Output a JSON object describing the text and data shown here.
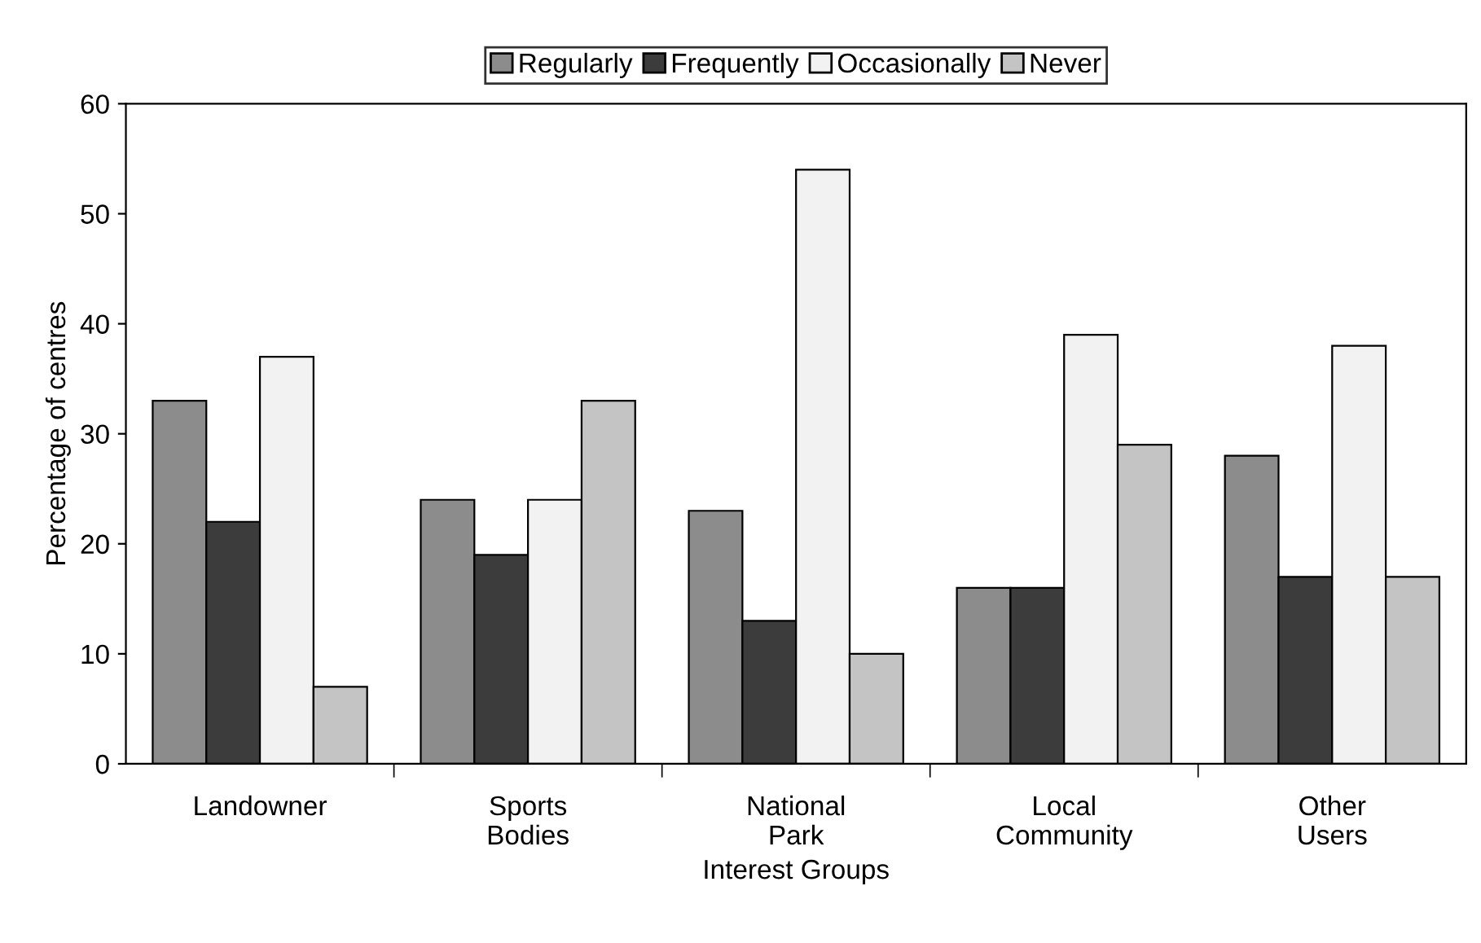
{
  "chart_data": {
    "type": "bar",
    "xlabel": "Interest Groups",
    "ylabel": "Percentage of centres",
    "categories": [
      "Landowner",
      "Sports\nBodies",
      "National\nPark",
      "Local\nCommunity",
      "Other\nUsers"
    ],
    "series": [
      {
        "name": "Regularly",
        "color": "#8c8c8c",
        "values": [
          33,
          24,
          23,
          16,
          28
        ]
      },
      {
        "name": "Frequently",
        "color": "#3c3c3c",
        "values": [
          22,
          19,
          13,
          16,
          17
        ]
      },
      {
        "name": "Occasionally",
        "color": "#f2f2f2",
        "values": [
          37,
          24,
          54,
          39,
          38
        ]
      },
      {
        "name": "Never",
        "color": "#c4c4c4",
        "values": [
          7,
          33,
          10,
          29,
          17
        ]
      }
    ],
    "ylim": [
      0,
      60
    ],
    "yticks": [
      0,
      10,
      20,
      30,
      40,
      50,
      60
    ],
    "grid": false,
    "legend": "top"
  }
}
